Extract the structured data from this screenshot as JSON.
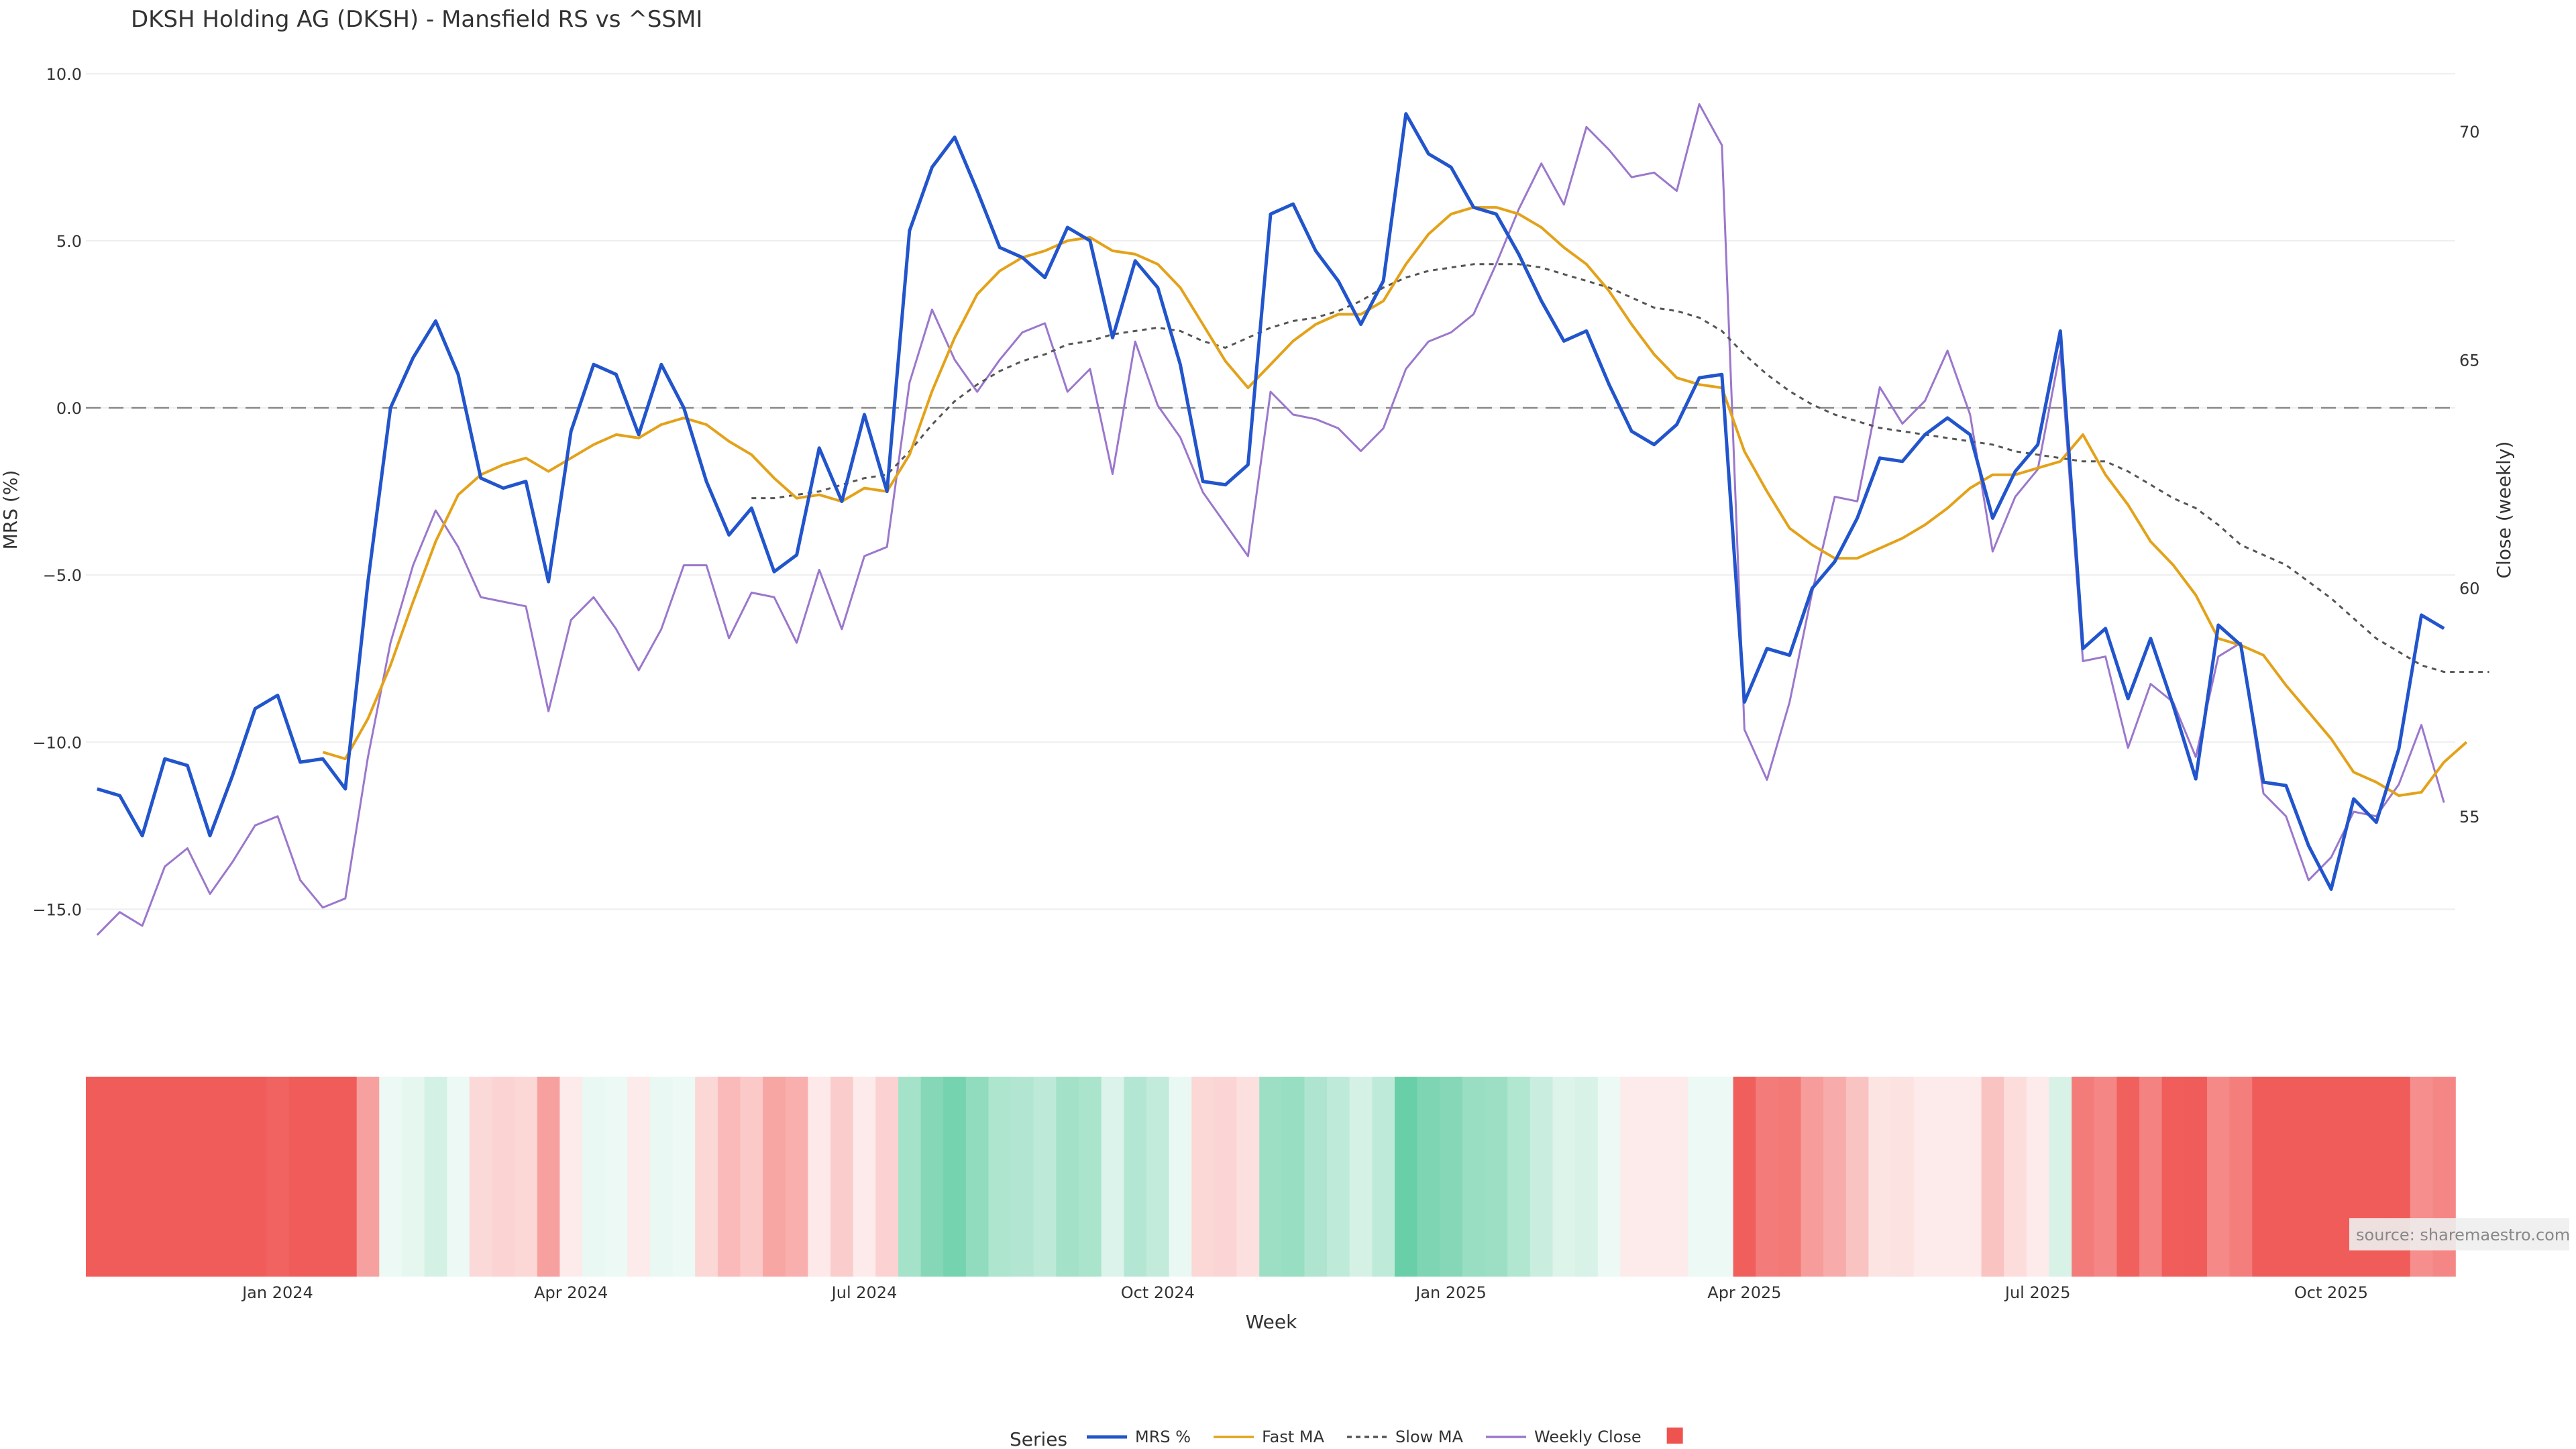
{
  "chart_data": {
    "type": "line",
    "title": "DKSH Holding AG (DKSH) - Mansfield RS vs ^SSMI",
    "xlabel": "Week",
    "ylabel": "MRS (%)",
    "y2label": "Close (weekly)",
    "ylim": [
      -17,
      11
    ],
    "y2lim": [
      51.5,
      72
    ],
    "yticks": [
      10.0,
      5.0,
      0.0,
      -5.0,
      -10.0,
      -15.0
    ],
    "ytick_labels": [
      "10.0",
      "5.0",
      "0.0",
      "−5.0",
      "−10.0",
      "−15.0"
    ],
    "y2ticks": [
      70,
      65,
      60,
      55
    ],
    "y2tick_labels": [
      "70",
      "65",
      "60",
      "55"
    ],
    "xticks": [
      {
        "index": 8,
        "label": "Jan 2024"
      },
      {
        "index": 21,
        "label": "Apr 2024"
      },
      {
        "index": 34,
        "label": "Jul 2024"
      },
      {
        "index": 47,
        "label": "Oct 2024"
      },
      {
        "index": 60,
        "label": "Jan 2025"
      },
      {
        "index": 73,
        "label": "Apr 2025"
      },
      {
        "index": 86,
        "label": "Jul 2025"
      },
      {
        "index": 99,
        "label": "Oct 2025"
      }
    ],
    "zero_line": 0,
    "series": [
      {
        "name": "MRS %",
        "color": "#2255cc",
        "axis": "left",
        "values": [
          -11.4,
          -11.6,
          -12.8,
          -10.5,
          -10.7,
          -12.8,
          -11,
          -9,
          -8.6,
          -10.6,
          -10.5,
          -11.4,
          -5.2,
          0,
          1.5,
          2.6,
          1,
          -2.1,
          -2.4,
          -2.2,
          -5.2,
          -0.7,
          1.3,
          1,
          -0.8,
          1.3,
          0,
          -2.2,
          -3.8,
          -3,
          -4.9,
          -4.4,
          -1.2,
          -2.8,
          -0.2,
          -2.5,
          5.3,
          7.2,
          8.1,
          6.5,
          4.8,
          4.5,
          3.9,
          5.4,
          5,
          2.1,
          4.4,
          3.6,
          1.3,
          -2.2,
          -2.3,
          -1.7,
          5.8,
          6.1,
          4.7,
          3.8,
          2.5,
          3.8,
          8.8,
          7.6,
          7.2,
          6,
          5.8,
          4.6,
          3.2,
          2,
          2.3,
          0.7,
          -0.7,
          -1.1,
          -0.5,
          0.9,
          1,
          -8.8,
          -7.2,
          -7.4,
          -5.4,
          -4.6,
          -3.3,
          -1.5,
          -1.6,
          -0.8,
          -0.3,
          -0.8,
          -3.3,
          -1.9,
          -1.1,
          2.3,
          -7.2,
          -6.6,
          -8.7,
          -6.9,
          -8.9,
          -11.1,
          -6.5,
          -7.1,
          -11.2,
          -11.3,
          -13.1,
          -14.4,
          -11.7,
          -12.4,
          -10.2,
          -6.2,
          -6.6
        ]
      },
      {
        "name": "Fast MA",
        "color": "#e3a21a",
        "axis": "left",
        "values": [
          null,
          null,
          null,
          null,
          null,
          null,
          null,
          null,
          null,
          null,
          -10.3,
          -10.5,
          -9.3,
          -7.7,
          -5.8,
          -4,
          -2.6,
          -2,
          -1.7,
          -1.5,
          -1.9,
          -1.5,
          -1.1,
          -0.8,
          -0.9,
          -0.5,
          -0.3,
          -0.5,
          -1,
          -1.4,
          -2.1,
          -2.7,
          -2.6,
          -2.8,
          -2.4,
          -2.5,
          -1.4,
          0.5,
          2.1,
          3.4,
          4.1,
          4.5,
          4.7,
          5,
          5.1,
          4.7,
          4.6,
          4.3,
          3.6,
          2.5,
          1.4,
          0.6,
          1.3,
          2,
          2.5,
          2.8,
          2.8,
          3.2,
          4.3,
          5.2,
          5.8,
          6,
          6,
          5.8,
          5.4,
          4.8,
          4.3,
          3.5,
          2.5,
          1.6,
          0.9,
          0.7,
          0.6,
          -1.3,
          -2.5,
          -3.6,
          -4.1,
          -4.5,
          -4.5,
          -4.2,
          -3.9,
          -3.5,
          -3,
          -2.4,
          -2,
          -2,
          -1.8,
          -1.6,
          -0.8,
          -2,
          -2.9,
          -4,
          -4.7,
          -5.6,
          -6.9,
          -7.1,
          -7.4,
          -8.3,
          -9.1,
          -9.9,
          -10.9,
          -11.2,
          -11.6,
          -11.5,
          -10.6,
          -10
        ]
      },
      {
        "name": "Slow MA",
        "color": "#555555",
        "axis": "left",
        "dashed": true,
        "values": [
          null,
          null,
          null,
          null,
          null,
          null,
          null,
          null,
          null,
          null,
          null,
          null,
          null,
          null,
          null,
          null,
          null,
          null,
          null,
          null,
          null,
          null,
          null,
          null,
          null,
          null,
          null,
          null,
          null,
          -2.7,
          -2.7,
          -2.6,
          -2.5,
          -2.3,
          -2.1,
          -2,
          -1.3,
          -0.5,
          0.2,
          0.7,
          1.1,
          1.4,
          1.6,
          1.9,
          2,
          2.2,
          2.3,
          2.4,
          2.3,
          2,
          1.8,
          2.1,
          2.4,
          2.6,
          2.7,
          2.9,
          3.2,
          3.6,
          3.9,
          4.1,
          4.2,
          4.3,
          4.3,
          4.3,
          4.2,
          4,
          3.8,
          3.6,
          3.3,
          3,
          2.9,
          2.7,
          2.3,
          1.6,
          1,
          0.5,
          0.1,
          -0.2,
          -0.4,
          -0.6,
          -0.7,
          -0.8,
          -0.9,
          -1,
          -1.1,
          -1.3,
          -1.4,
          -1.5,
          -1.6,
          -1.6,
          -1.9,
          -2.3,
          -2.7,
          -3,
          -3.5,
          -4.1,
          -4.4,
          -4.7,
          -5.2,
          -5.7,
          -6.3,
          -6.9,
          -7.3,
          -7.7,
          -7.9,
          -7.9,
          -7.9
        ]
      },
      {
        "name": "Weekly Close",
        "color": "#9b77cc",
        "axis": "right",
        "values": [
          52.4,
          52.9,
          52.6,
          53.9,
          54.3,
          53.3,
          54,
          54.8,
          55,
          53.6,
          53,
          53.2,
          56.3,
          58.8,
          60.5,
          61.7,
          60.9,
          59.8,
          59.7,
          59.6,
          57.3,
          59.3,
          59.8,
          59.1,
          58.2,
          59.1,
          60.5,
          60.5,
          58.9,
          59.9,
          59.8,
          58.8,
          60.4,
          59.1,
          60.7,
          60.9,
          64.5,
          66.1,
          65,
          64.3,
          65,
          65.6,
          65.8,
          64.3,
          64.8,
          62.5,
          65.4,
          64,
          63.3,
          62.1,
          61.4,
          60.7,
          64.3,
          63.8,
          63.7,
          63.5,
          63,
          63.5,
          64.8,
          65.4,
          65.6,
          66,
          67.1,
          68.3,
          69.3,
          68.4,
          70.1,
          69.6,
          69,
          69.1,
          68.7,
          70.6,
          69.7,
          56.9,
          55.8,
          57.5,
          59.9,
          62,
          61.9,
          64.4,
          63.6,
          64.1,
          65.2,
          63.8,
          60.8,
          62,
          62.6,
          65.2,
          58.4,
          58.5,
          56.5,
          57.9,
          57.5,
          56.3,
          58.5,
          58.8,
          55.5,
          55,
          53.6,
          54.1,
          55.1,
          55,
          55.7,
          57,
          55.3
        ]
      }
    ],
    "heatmap_band": {
      "label": "",
      "values": [
        -11.4,
        -11.6,
        -12.8,
        -10.5,
        -10.7,
        -12.8,
        -11,
        -9,
        -8.6,
        -10.6,
        -10.5,
        -11.4,
        -5.2,
        0,
        1.5,
        2.6,
        1,
        -2.1,
        -2.4,
        -2.2,
        -5.2,
        -0.7,
        1.3,
        1,
        -0.8,
        1.3,
        0,
        -2.2,
        -3.8,
        -3,
        -4.9,
        -4.4,
        -1.2,
        -2.8,
        -0.2,
        -2.5,
        5.3,
        7.2,
        8.1,
        6.5,
        4.8,
        4.5,
        3.9,
        5.4,
        5,
        2.1,
        4.4,
        3.6,
        1.3,
        -2.2,
        -2.3,
        -1.7,
        5.8,
        6.1,
        4.7,
        3.8,
        2.5,
        3.8,
        8.8,
        7.6,
        7.2,
        6,
        5.8,
        4.6,
        3.2,
        2,
        2.3,
        0.7,
        -0.7,
        -1.1,
        -0.5,
        0.9,
        1,
        -8.8,
        -7.2,
        -7.4,
        -5.4,
        -4.6,
        -3.3,
        -1.5,
        -1.6,
        -0.8,
        -0.3,
        -0.8,
        -3.3,
        -1.9,
        -1.1,
        2.3,
        -7.2,
        -6.6,
        -8.7,
        -6.9,
        -8.9,
        -11.1,
        -6.5,
        -7.1,
        -11.2,
        -11.3,
        -13.1,
        -14.4,
        -11.7,
        -12.4,
        -10.2,
        -6.2,
        -6.6
      ]
    },
    "legend": {
      "title": "Series",
      "position": "bottom-center",
      "entries": [
        "MRS %",
        "Fast MA",
        "Slow MA",
        "Weekly Close",
        ""
      ]
    },
    "colors": {
      "positive": "#5ecba1",
      "negative": "#ef5350",
      "neutral": "#ffffff",
      "grid": "#eeeeee",
      "zero_line": "#888888",
      "legend_swatch": "#ef5350"
    }
  },
  "source": "source: sharemaestro.com"
}
